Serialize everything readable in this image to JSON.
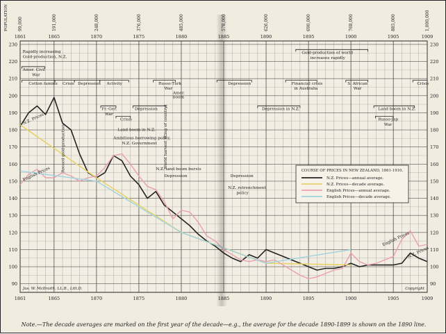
{
  "note": "Note.—The decade averages are marked on the first year of the decade—e.g., the average for the decade 1890-1899 is shown on the 1890 line.",
  "population_label": "POPULATION",
  "author": "Jas. W. McIlraith, LL.B., Litt.D.",
  "copyright": "Copyright",
  "colors": {
    "nz_annual": "#222222",
    "nz_decade": "#e6d36a",
    "eng_annual": "#e8a0b0",
    "eng_decade": "#9fd3dc",
    "grid": "#3a3a3a",
    "paper": "#f1ece0"
  },
  "chart_data": {
    "type": "line",
    "x_ticks": [
      1861,
      1865,
      1870,
      1875,
      1880,
      1885,
      1890,
      1895,
      1900,
      1905,
      1909
    ],
    "ylim": [
      85,
      232
    ],
    "y_ticks": [
      90,
      100,
      110,
      120,
      130,
      140,
      150,
      160,
      170,
      180,
      190,
      200,
      210,
      220,
      230
    ],
    "grid": true,
    "population_ticks": [
      {
        "year": 1861,
        "label": "99,000"
      },
      {
        "year": 1865,
        "label": "191,000"
      },
      {
        "year": 1870,
        "label": "248,000"
      },
      {
        "year": 1875,
        "label": "376,000"
      },
      {
        "year": 1880,
        "label": "485,000"
      },
      {
        "year": 1885,
        "label": "578,000"
      },
      {
        "year": 1890,
        "label": "626,000"
      },
      {
        "year": 1895,
        "label": "690,000"
      },
      {
        "year": 1900,
        "label": "768,000"
      },
      {
        "year": 1905,
        "label": "885,000"
      },
      {
        "year": 1909,
        "label": "1,000,000"
      }
    ],
    "legend": {
      "title": "COURSE OF PRICES IN NEW ZEALAND, 1861-1910.",
      "placement": "right-center",
      "entries": [
        "N.Z. Prices—annual average.",
        "N.Z. Prices—decade average.",
        "English Prices—annual average.",
        "English Prices—decade average."
      ]
    },
    "series": [
      {
        "name": "N.Z. Prices—annual average.",
        "color": "#222222",
        "x": [
          1861,
          1862,
          1863,
          1864,
          1865,
          1866,
          1867,
          1868,
          1869,
          1870,
          1871,
          1872,
          1873,
          1874,
          1875,
          1876,
          1877,
          1878,
          1879,
          1880,
          1881,
          1882,
          1883,
          1884,
          1885,
          1886,
          1887,
          1888,
          1889,
          1890,
          1891,
          1892,
          1893,
          1894,
          1895,
          1896,
          1897,
          1898,
          1899,
          1900,
          1901,
          1902,
          1903,
          1904,
          1905,
          1906,
          1907,
          1908,
          1909
        ],
        "y": [
          182,
          190,
          194,
          189,
          199,
          184,
          180,
          166,
          155,
          152,
          155,
          165,
          162,
          153,
          148,
          140,
          144,
          136,
          132,
          128,
          124,
          119,
          115,
          112,
          108,
          105,
          103,
          107,
          105,
          110,
          108,
          106,
          104,
          102,
          100,
          98,
          99,
          99,
          100,
          102,
          100,
          101,
          101,
          101,
          101,
          102,
          108,
          105,
          103
        ]
      },
      {
        "name": "N.Z. Prices—decade average.",
        "color": "#e6d36a",
        "x": [
          1861,
          1870,
          1880,
          1890,
          1900
        ],
        "y": [
          183,
          152,
          120,
          102,
          101
        ]
      },
      {
        "name": "English Prices—annual average.",
        "color": "#e8a0b0",
        "x": [
          1861,
          1862,
          1863,
          1864,
          1865,
          1866,
          1867,
          1868,
          1869,
          1870,
          1871,
          1872,
          1873,
          1874,
          1875,
          1876,
          1877,
          1878,
          1879,
          1880,
          1881,
          1882,
          1883,
          1884,
          1885,
          1886,
          1887,
          1888,
          1889,
          1890,
          1891,
          1892,
          1893,
          1894,
          1895,
          1896,
          1897,
          1898,
          1899,
          1900,
          1901,
          1902,
          1903,
          1904,
          1905,
          1906,
          1907,
          1908,
          1909
        ],
        "y": [
          148,
          154,
          157,
          152,
          152,
          155,
          153,
          150,
          152,
          153,
          158,
          165,
          166,
          160,
          153,
          147,
          145,
          138,
          128,
          133,
          132,
          126,
          118,
          115,
          110,
          107,
          104,
          103,
          104,
          103,
          104,
          101,
          98,
          95,
          93,
          94,
          96,
          98,
          99,
          108,
          103,
          101,
          102,
          104,
          106,
          116,
          121,
          112,
          113
        ]
      },
      {
        "name": "English Prices—decade average.",
        "color": "#9fd3dc",
        "x": [
          1861,
          1870,
          1880,
          1890,
          1900
        ],
        "y": [
          156,
          150,
          120,
          102,
          110
        ]
      }
    ],
    "annotations": [
      {
        "text": "Rapidly increasing",
        "x": 1861.3,
        "y": 225
      },
      {
        "text": "Gold-production, N.Z.",
        "x": 1861.3,
        "y": 222
      },
      {
        "text": "Amer. Civil",
        "x": 1861.3,
        "y": 214.5
      },
      {
        "text": "War",
        "x": 1862.4,
        "y": 211.5
      },
      {
        "text": "Cotton famine",
        "x": 1862,
        "y": 206.5
      },
      {
        "text": "Crisis",
        "x": 1866,
        "y": 206.5
      },
      {
        "text": "Depression",
        "x": 1867.8,
        "y": 206.5
      },
      {
        "text": "Activity",
        "x": 1871.2,
        "y": 206.5
      },
      {
        "text": "Russo-Turk",
        "x": 1877.3,
        "y": 206.5
      },
      {
        "text": "War",
        "x": 1878,
        "y": 203.5
      },
      {
        "text": "Amer.",
        "x": 1879,
        "y": 201
      },
      {
        "text": "boom",
        "x": 1879,
        "y": 198.5
      },
      {
        "text": "Depression",
        "x": 1885.5,
        "y": 206.5
      },
      {
        "text": "Financial crisis",
        "x": 1893,
        "y": 206.5
      },
      {
        "text": "in Australia",
        "x": 1893.3,
        "y": 203.5
      },
      {
        "text": "S. African",
        "x": 1899.6,
        "y": 206.5
      },
      {
        "text": "War",
        "x": 1900.3,
        "y": 203.5
      },
      {
        "text": "Crisis",
        "x": 1907.8,
        "y": 206.5
      },
      {
        "text": "Gold-production of world",
        "x": 1894.2,
        "y": 224.5
      },
      {
        "text": "increases rapidly",
        "x": 1895.2,
        "y": 221.5
      },
      {
        "text": "N.Z. Prices",
        "x": 1861.4,
        "y": 183
      },
      {
        "text": "Fr.-Ger.",
        "x": 1870.6,
        "y": 191.5
      },
      {
        "text": "War",
        "x": 1871,
        "y": 188.5
      },
      {
        "text": "Depression",
        "x": 1874.5,
        "y": 191.5
      },
      {
        "text": "Crisis",
        "x": 1872.8,
        "y": 185.5
      },
      {
        "text": "Land boom in N.Z.",
        "x": 1872.5,
        "y": 179.5
      },
      {
        "text": "Ambitious borrowing policy,",
        "x": 1872,
        "y": 174.5
      },
      {
        "text": "N.Z. Government",
        "x": 1873,
        "y": 171.5
      },
      {
        "text": "Depression in N.Z.",
        "x": 1889.5,
        "y": 191.5
      },
      {
        "text": "Land boom in N.Z.",
        "x": 1903.2,
        "y": 191.5
      },
      {
        "text": "Russo-Jap",
        "x": 1903.2,
        "y": 185.5
      },
      {
        "text": "War",
        "x": 1903.9,
        "y": 182.5
      },
      {
        "text": "Record gold-production",
        "x": 1866.2,
        "y": 155
      },
      {
        "text": "World harvest (King of country)",
        "x": 1878.3,
        "y": 157
      },
      {
        "text": "N.Z. land boom bursts",
        "x": 1877,
        "y": 156.5
      },
      {
        "text": "Depression",
        "x": 1878,
        "y": 152.5
      },
      {
        "text": "Depression",
        "x": 1885.8,
        "y": 152.5
      },
      {
        "text": "N.Z. retrenchment",
        "x": 1885.5,
        "y": 145.5
      },
      {
        "text": "policy",
        "x": 1886.5,
        "y": 142.5
      },
      {
        "text": "English Prices",
        "x": 1861.4,
        "y": 150
      },
      {
        "text": "English Prices",
        "x": 1903.8,
        "y": 112
      },
      {
        "text": "N.Z. Prices",
        "x": 1906.8,
        "y": 105
      }
    ]
  }
}
